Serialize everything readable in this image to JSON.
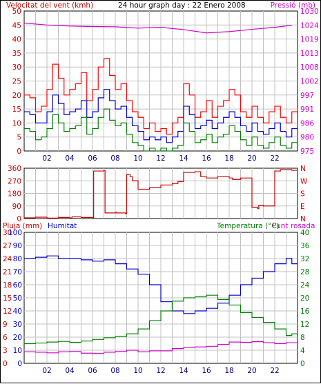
{
  "chart_data": [
    {
      "type": "line",
      "title": "24 hour graph day : 22 Enero 2008",
      "left_axis_label": "Velocitat del vent (kmh)",
      "right_axis_label": "Pressió (mb)",
      "x_ticks": [
        "02",
        "04",
        "06",
        "08",
        "10",
        "12",
        "14",
        "16",
        "18",
        "20",
        "22"
      ],
      "xlim": [
        0,
        24
      ],
      "left_ylim": [
        0,
        50
      ],
      "left_ticks": [
        "0",
        "5",
        "10",
        "15",
        "20",
        "25",
        "30",
        "35",
        "40",
        "45",
        "50"
      ],
      "right_ylim": [
        975,
        1030
      ],
      "right_ticks": [
        "975",
        "980",
        "986",
        "991",
        "997",
        "1002",
        "1008",
        "1013",
        "1019",
        "1024",
        "1030"
      ],
      "colors": {
        "gust": "#ff0000",
        "avg": "#0000cc",
        "min": "#008000",
        "pressure": "#d000d0"
      },
      "series": [
        {
          "id": "gust",
          "x": [
            0,
            0.5,
            1,
            1.5,
            2,
            2.5,
            3,
            3.5,
            4,
            4.5,
            5,
            5.5,
            6,
            6.5,
            7,
            7.5,
            8,
            8.5,
            9,
            9.5,
            10,
            10.5,
            11,
            11.5,
            12,
            12.5,
            13,
            13.5,
            14,
            14.5,
            15,
            15.5,
            16,
            16.5,
            17,
            17.5,
            18,
            18.5,
            19,
            19.5,
            20,
            20.5,
            21,
            21.5,
            22,
            22.5,
            23,
            23.5
          ],
          "values": [
            20,
            19,
            14,
            16,
            22,
            31,
            26,
            20,
            22,
            24,
            28,
            18,
            22,
            30,
            33,
            27,
            22,
            24,
            18,
            14,
            12,
            8,
            10,
            7,
            8,
            6,
            10,
            12,
            24,
            20,
            12,
            14,
            18,
            12,
            16,
            18,
            22,
            20,
            14,
            12,
            16,
            12,
            10,
            14,
            16,
            12,
            10,
            14
          ]
        },
        {
          "id": "avg",
          "x": [
            0,
            0.5,
            1,
            1.5,
            2,
            2.5,
            3,
            3.5,
            4,
            4.5,
            5,
            5.5,
            6,
            6.5,
            7,
            7.5,
            8,
            8.5,
            9,
            9.5,
            10,
            10.5,
            11,
            11.5,
            12,
            12.5,
            13,
            13.5,
            14,
            14.5,
            15,
            15.5,
            16,
            16.5,
            17,
            17.5,
            18,
            18.5,
            19,
            19.5,
            20,
            20.5,
            21,
            21.5,
            22,
            22.5,
            23,
            23.5
          ],
          "values": [
            14,
            13,
            10,
            10,
            14,
            20,
            17,
            13,
            14,
            15,
            18,
            12,
            14,
            19,
            22,
            18,
            15,
            16,
            12,
            9,
            7,
            4,
            5,
            4,
            5,
            3,
            5,
            7,
            16,
            13,
            8,
            9,
            11,
            8,
            10,
            12,
            14,
            12,
            9,
            7,
            10,
            7,
            6,
            8,
            10,
            7,
            5,
            8
          ]
        },
        {
          "id": "min",
          "x": [
            0,
            0.5,
            1,
            1.5,
            2,
            2.5,
            3,
            3.5,
            4,
            4.5,
            5,
            5.5,
            6,
            6.5,
            7,
            7.5,
            8,
            8.5,
            9,
            9.5,
            10,
            10.5,
            11,
            11.5,
            12,
            12.5,
            13,
            13.5,
            14,
            14.5,
            15,
            15.5,
            16,
            16.5,
            17,
            17.5,
            18,
            18.5,
            19,
            19.5,
            20,
            20.5,
            21,
            21.5,
            22,
            22.5,
            23,
            23.5
          ],
          "values": [
            8,
            7,
            4,
            5,
            8,
            13,
            10,
            7,
            8,
            9,
            12,
            6,
            8,
            12,
            15,
            11,
            9,
            10,
            6,
            3,
            2,
            0,
            1,
            0,
            1,
            0,
            1,
            2,
            10,
            7,
            3,
            4,
            6,
            3,
            5,
            6,
            9,
            7,
            4,
            2,
            5,
            2,
            1,
            3,
            5,
            2,
            1,
            3
          ]
        },
        {
          "id": "pressure",
          "axis": "right",
          "x": [
            0,
            2,
            4,
            6,
            8,
            10,
            12,
            14,
            16,
            18,
            20,
            22,
            23.5
          ],
          "values": [
            1025.3,
            1024.5,
            1024.1,
            1023.9,
            1023.8,
            1023.3,
            1023.6,
            1022.7,
            1021.4,
            1021.9,
            1022.8,
            1023.6,
            1024.4
          ]
        }
      ]
    },
    {
      "type": "line",
      "left_ylim": [
        0,
        360
      ],
      "left_ticks": [
        "0",
        "90",
        "180",
        "270",
        "360"
      ],
      "right_ticks": [
        "N",
        "E",
        "S",
        "W",
        "N"
      ],
      "color": "#cc0000",
      "series": [
        {
          "id": "direction",
          "x": [
            0,
            1,
            2,
            3,
            4,
            4.2,
            5,
            6,
            6.1,
            7,
            7.1,
            8,
            8.1,
            8.9,
            9,
            9.3,
            9.5,
            10,
            11,
            12,
            13,
            13.5,
            14,
            15,
            15.5,
            16,
            17,
            18,
            18.3,
            19,
            20,
            20.5,
            20.6,
            21,
            22,
            22.5,
            23,
            23.5
          ],
          "values": [
            5,
            10,
            3,
            8,
            4,
            12,
            8,
            6,
            340,
            345,
            40,
            45,
            40,
            35,
            315,
            300,
            270,
            210,
            220,
            240,
            250,
            265,
            330,
            335,
            300,
            290,
            300,
            290,
            280,
            290,
            80,
            70,
            95,
            90,
            340,
            350,
            350,
            345
          ]
        }
      ]
    },
    {
      "type": "line",
      "left_axis_label": "Pluja (mm)",
      "humidity_label": "Humitat",
      "right_axis_label": "Temperatura (°C)",
      "right_axis_label2": "Punt rosada",
      "x_ticks": [
        "02",
        "04",
        "06",
        "08",
        "10",
        "12",
        "14",
        "16",
        "18",
        "20",
        "22"
      ],
      "left_ylim": [
        0,
        30
      ],
      "left_ticks": [
        "0",
        "3",
        "6",
        "9",
        "12",
        "15",
        "18",
        "21",
        "24",
        "27",
        "30"
      ],
      "humidity_ylim": [
        0,
        100
      ],
      "humidity_ticks": [
        "0",
        "10",
        "20",
        "30",
        "40",
        "50",
        "60",
        "70",
        "80",
        "90",
        "100"
      ],
      "right_ylim": [
        0,
        40
      ],
      "right_ticks": [
        "0",
        "4",
        "8",
        "12",
        "16",
        "20",
        "24",
        "28",
        "32",
        "36",
        "40"
      ],
      "colors": {
        "humidity": "#0000cc",
        "temperature": "#008000",
        "dewpoint": "#d000d0"
      },
      "series": [
        {
          "id": "humidity",
          "axis": "humidity",
          "x": [
            0,
            1,
            2,
            3,
            4,
            5,
            6,
            7,
            8,
            9,
            10,
            11,
            12,
            13,
            14,
            15,
            16,
            17,
            18,
            19,
            20,
            21,
            22,
            23,
            23.5
          ],
          "values": [
            80,
            81,
            82,
            80,
            80,
            79,
            78,
            79,
            76,
            72,
            68,
            60,
            47,
            40,
            38,
            40,
            42,
            46,
            52,
            60,
            65,
            70,
            76,
            80,
            76
          ]
        },
        {
          "id": "temperature",
          "axis": "right",
          "x": [
            0,
            1,
            2,
            3,
            4,
            5,
            6,
            7,
            8,
            9,
            10,
            11,
            12,
            13,
            14,
            15,
            16,
            17,
            18,
            19,
            20,
            21,
            22,
            23,
            23.5
          ],
          "values": [
            6,
            6.2,
            6.5,
            6.7,
            6.4,
            6.8,
            7.3,
            7.8,
            8.2,
            9,
            10.5,
            13,
            16,
            19,
            20,
            20.3,
            20.8,
            19.5,
            17.8,
            15.5,
            14,
            12.5,
            10.5,
            8.5,
            9
          ]
        },
        {
          "id": "dewpoint",
          "axis": "right",
          "x": [
            0,
            1,
            2,
            3,
            4,
            5,
            6,
            7,
            8,
            9,
            10,
            11,
            12,
            13,
            14,
            15,
            16,
            17,
            18,
            19,
            20,
            21,
            22,
            23,
            23.5
          ],
          "values": [
            3.5,
            3.4,
            3.2,
            3.5,
            3.6,
            3.1,
            3,
            3.4,
            3.6,
            4,
            3.5,
            3.8,
            3.8,
            4.5,
            4.8,
            5,
            5.2,
            5.8,
            6.5,
            6.4,
            6.6,
            6.3,
            6,
            6.3,
            6.3
          ]
        }
      ]
    }
  ]
}
